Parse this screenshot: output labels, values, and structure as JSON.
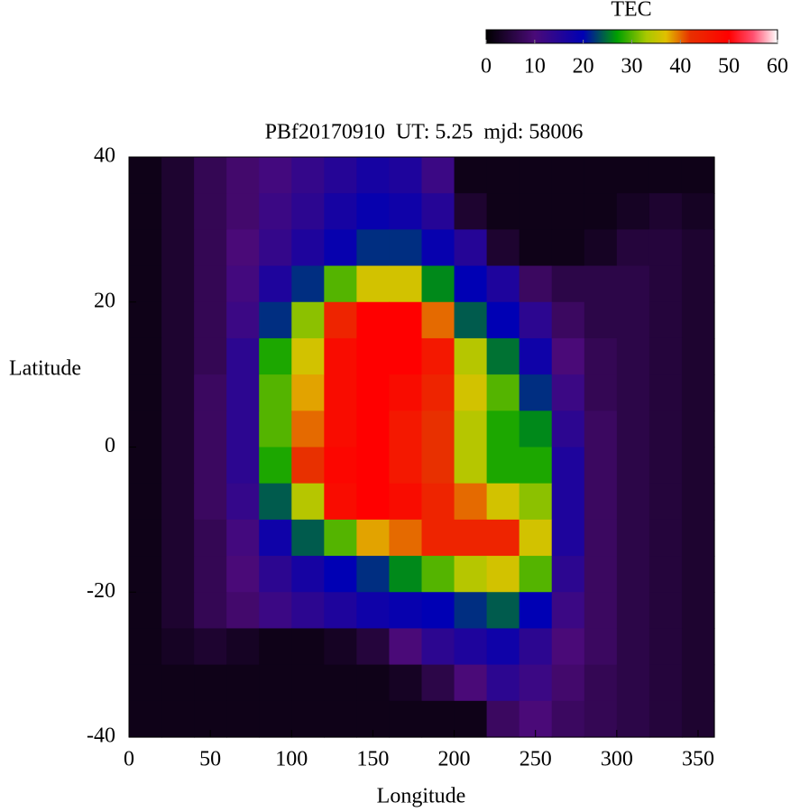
{
  "chart_data": {
    "type": "heatmap",
    "title": "PBf20170910  UT: 5.25  mjd: 58006",
    "xlabel": "Longitude",
    "ylabel": "Latitude",
    "colorbar_label": "TEC",
    "xlim": [
      0,
      360
    ],
    "ylim": [
      -40,
      40
    ],
    "xticks": [
      0,
      50,
      100,
      150,
      200,
      250,
      300,
      350
    ],
    "yticks": [
      -40,
      -20,
      0,
      20,
      40
    ],
    "clim": [
      0,
      60
    ],
    "cticks": [
      0,
      10,
      20,
      30,
      40,
      50,
      60
    ],
    "colormap": [
      {
        "value": 0,
        "color": "#000000"
      },
      {
        "value": 10,
        "color": "#4a0a78"
      },
      {
        "value": 20,
        "color": "#0000b4"
      },
      {
        "value": 27,
        "color": "#00a000"
      },
      {
        "value": 33,
        "color": "#a8c800"
      },
      {
        "value": 37,
        "color": "#e0c000"
      },
      {
        "value": 42,
        "color": "#e83000"
      },
      {
        "value": 50,
        "color": "#ff0000"
      },
      {
        "value": 55,
        "color": "#ff5070"
      },
      {
        "value": 60,
        "color": "#ffffff"
      }
    ],
    "x": [
      10,
      30,
      50,
      70,
      90,
      110,
      130,
      150,
      170,
      190,
      210,
      230,
      250,
      270,
      290,
      310,
      330,
      350
    ],
    "y": [
      37.5,
      32.5,
      27.5,
      22.5,
      17.5,
      12.5,
      7.5,
      2.5,
      -2.5,
      -7.5,
      -12.5,
      -17.5,
      -22.5,
      -27.5,
      -32.5,
      -37.5
    ],
    "z": [
      [
        2,
        4,
        7,
        9,
        11,
        13,
        15,
        17,
        16,
        12,
        2,
        2,
        2,
        2,
        2,
        2,
        2,
        2
      ],
      [
        2,
        4,
        7,
        9,
        12,
        14,
        17,
        19,
        18,
        15,
        4,
        2,
        2,
        2,
        2,
        3,
        4,
        3
      ],
      [
        2,
        4,
        7,
        10,
        13,
        16,
        19,
        22,
        22,
        19,
        15,
        4,
        2,
        2,
        3,
        5,
        5,
        4
      ],
      [
        2,
        4,
        7,
        11,
        16,
        22,
        30,
        36,
        36,
        26,
        20,
        16,
        8,
        6,
        6,
        6,
        5,
        4
      ],
      [
        2,
        4,
        7,
        12,
        22,
        32,
        44,
        50,
        50,
        40,
        24,
        20,
        14,
        8,
        6,
        6,
        5,
        4
      ],
      [
        2,
        4,
        7,
        14,
        28,
        36,
        48,
        50,
        50,
        46,
        34,
        25,
        18,
        10,
        7,
        6,
        5,
        4
      ],
      [
        2,
        4,
        8,
        14,
        30,
        38,
        48,
        50,
        48,
        44,
        36,
        30,
        22,
        12,
        7,
        6,
        5,
        4
      ],
      [
        2,
        4,
        8,
        14,
        30,
        40,
        48,
        50,
        46,
        42,
        34,
        28,
        26,
        14,
        8,
        6,
        5,
        4
      ],
      [
        2,
        4,
        8,
        14,
        28,
        42,
        49,
        50,
        46,
        42,
        34,
        28,
        28,
        16,
        8,
        6,
        5,
        4
      ],
      [
        2,
        4,
        8,
        13,
        24,
        34,
        48,
        50,
        48,
        44,
        40,
        36,
        32,
        16,
        8,
        6,
        5,
        4
      ],
      [
        2,
        4,
        7,
        11,
        18,
        24,
        30,
        38,
        40,
        44,
        44,
        44,
        36,
        16,
        8,
        6,
        5,
        4
      ],
      [
        2,
        4,
        7,
        10,
        14,
        17,
        20,
        22,
        26,
        30,
        34,
        36,
        30,
        14,
        8,
        6,
        5,
        4
      ],
      [
        2,
        4,
        7,
        9,
        12,
        14,
        16,
        18,
        19,
        20,
        22,
        24,
        20,
        12,
        8,
        6,
        5,
        4
      ],
      [
        2,
        3,
        4,
        3,
        2,
        2,
        3,
        5,
        10,
        14,
        16,
        18,
        14,
        10,
        8,
        6,
        5,
        4
      ],
      [
        2,
        2,
        2,
        2,
        2,
        2,
        2,
        2,
        3,
        6,
        10,
        14,
        12,
        9,
        7,
        6,
        5,
        4
      ],
      [
        2,
        2,
        2,
        2,
        2,
        2,
        2,
        2,
        2,
        2,
        2,
        8,
        10,
        8,
        7,
        6,
        5,
        4
      ]
    ]
  }
}
